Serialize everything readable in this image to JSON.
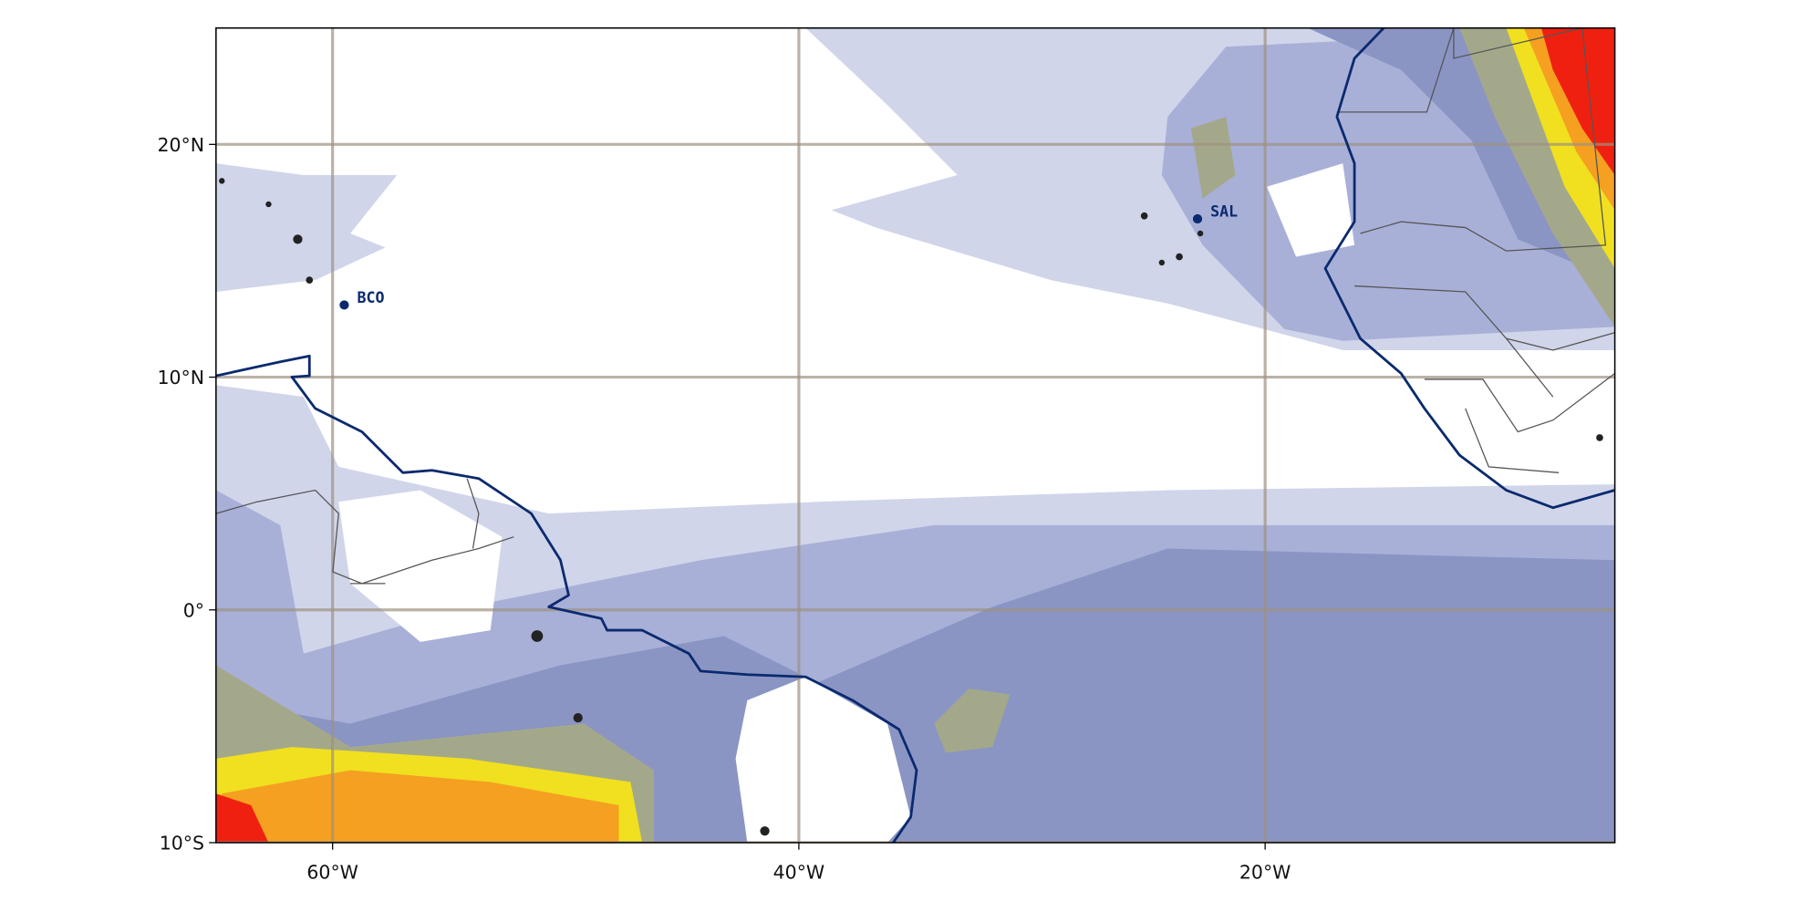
{
  "map": {
    "xlim": [
      -65,
      -5
    ],
    "ylim": [
      -10,
      25
    ],
    "xticks": [
      {
        "value": -60,
        "label": "60°W"
      },
      {
        "value": -40,
        "label": "40°W"
      },
      {
        "value": -20,
        "label": "20°W"
      }
    ],
    "yticks": [
      {
        "value": -10,
        "label": "10°S"
      },
      {
        "value": 0,
        "label": "0°"
      },
      {
        "value": 10,
        "label": "10°N"
      },
      {
        "value": 20,
        "label": "20°N"
      }
    ],
    "stations": [
      {
        "name": "BCO",
        "lon": -59.5,
        "lat": 13.1
      },
      {
        "name": "SAL",
        "lon": -22.9,
        "lat": 16.8
      }
    ]
  }
}
